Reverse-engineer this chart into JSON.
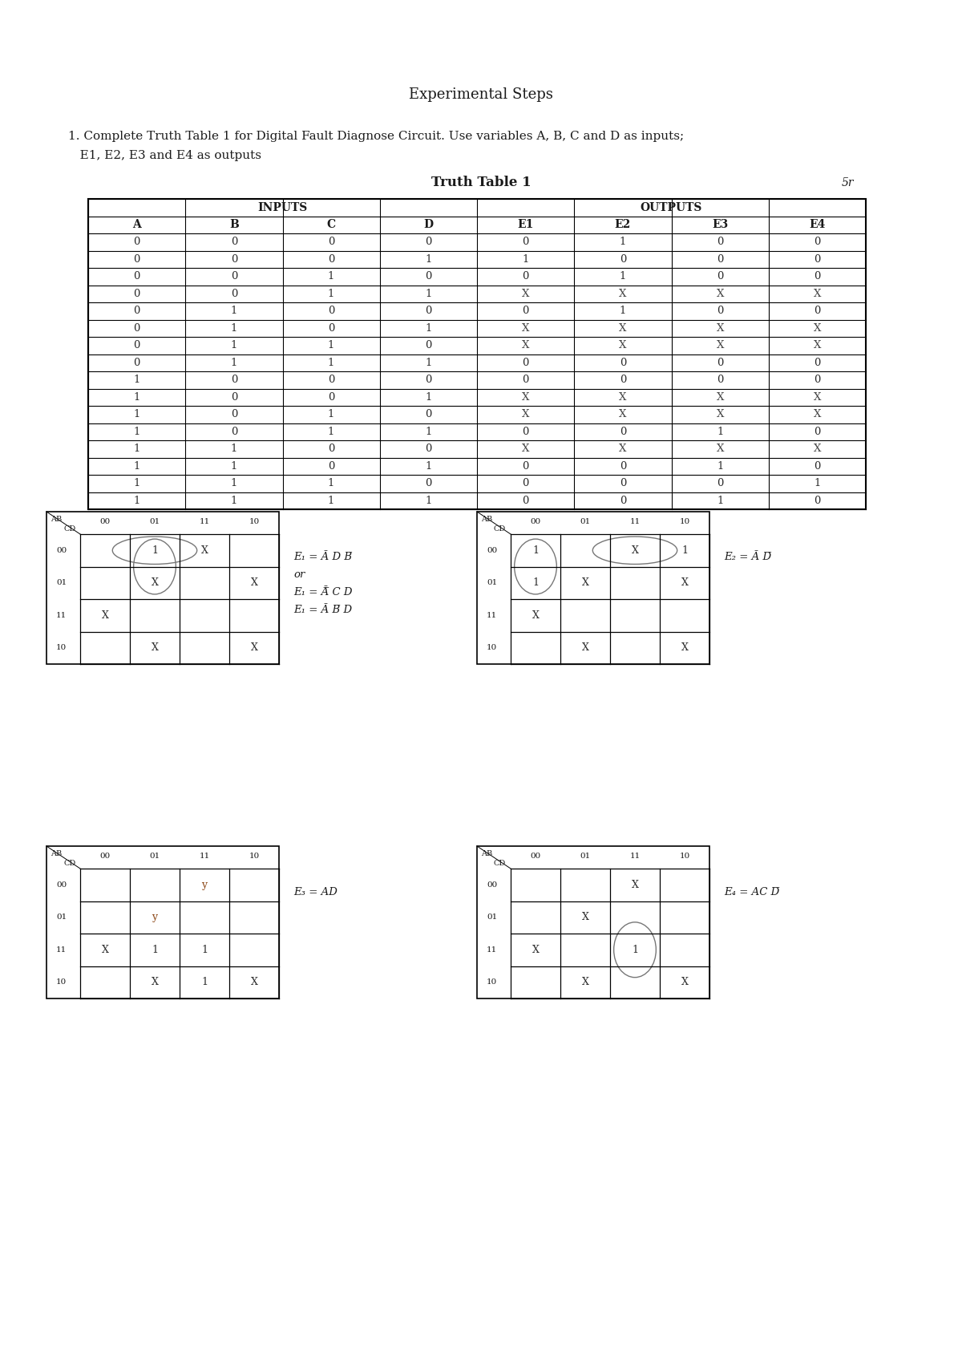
{
  "title": "Experimental Steps",
  "instruction_line1": "1. Complete Truth Table 1 for Digital Fault Diagnose Circuit. Use variables A, B, C and D as inputs;",
  "instruction_line2": "   E1, E2, E3 and E4 as outputs",
  "table_title": "Truth Table 1",
  "table_headers": [
    "A",
    "B",
    "C",
    "D",
    "E1",
    "E2",
    "E3",
    "E4"
  ],
  "table_data": [
    [
      "0",
      "0",
      "0",
      "0",
      "0",
      "1",
      "0",
      "0"
    ],
    [
      "0",
      "0",
      "0",
      "1",
      "1",
      "0",
      "0",
      "0"
    ],
    [
      "0",
      "0",
      "1",
      "0",
      "0",
      "1",
      "0",
      "0"
    ],
    [
      "0",
      "0",
      "1",
      "1",
      "X",
      "X",
      "X",
      "X"
    ],
    [
      "0",
      "1",
      "0",
      "0",
      "0",
      "1",
      "0",
      "0"
    ],
    [
      "0",
      "1",
      "0",
      "1",
      "X",
      "X",
      "X",
      "X"
    ],
    [
      "0",
      "1",
      "1",
      "0",
      "X",
      "X",
      "X",
      "X"
    ],
    [
      "0",
      "1",
      "1",
      "1",
      "0",
      "0",
      "0",
      "0"
    ],
    [
      "1",
      "0",
      "0",
      "0",
      "0",
      "0",
      "0",
      "0"
    ],
    [
      "1",
      "0",
      "0",
      "1",
      "X",
      "X",
      "X",
      "X"
    ],
    [
      "1",
      "0",
      "1",
      "0",
      "X",
      "X",
      "X",
      "X"
    ],
    [
      "1",
      "0",
      "1",
      "1",
      "0",
      "0",
      "1",
      "0"
    ],
    [
      "1",
      "1",
      "0",
      "0",
      "X",
      "X",
      "X",
      "X"
    ],
    [
      "1",
      "1",
      "0",
      "1",
      "0",
      "0",
      "1",
      "0"
    ],
    [
      "1",
      "1",
      "1",
      "0",
      "0",
      "0",
      "0",
      "1"
    ],
    [
      "1",
      "1",
      "1",
      "1",
      "0",
      "0",
      "1",
      "0"
    ]
  ],
  "background_color": "#ffffff",
  "text_color": "#1a1a1a",
  "kmap1_cells": [
    [
      "",
      "1",
      "X",
      ""
    ],
    [
      "",
      "X",
      "",
      "X"
    ],
    [
      "X",
      "",
      "",
      ""
    ],
    [
      "",
      "X",
      "",
      "X"
    ]
  ],
  "kmap1_equation_lines": [
    "E₁ = Ā D B̅",
    "or",
    "E₁ = Ā̅ C D",
    "E₁ = Ā B̅ D"
  ],
  "kmap2_cells": [
    [
      "1",
      "",
      "X",
      "1"
    ],
    [
      "1",
      "X",
      "",
      "X"
    ],
    [
      "X",
      "",
      "",
      ""
    ],
    [
      "",
      "X",
      "",
      "X"
    ]
  ],
  "kmap2_equation_lines": [
    "E₂ = Ā D̅"
  ],
  "kmap3_cells": [
    [
      "",
      "",
      "y",
      ""
    ],
    [
      "",
      "y",
      "",
      ""
    ],
    [
      "X",
      "1",
      "1",
      ""
    ],
    [
      "",
      "X",
      "1",
      "X"
    ]
  ],
  "kmap3_equation_lines": [
    "E₃ = AD"
  ],
  "kmap4_cells": [
    [
      "",
      "",
      "X",
      ""
    ],
    [
      "",
      "X",
      "",
      ""
    ],
    [
      "X",
      "",
      "1",
      ""
    ],
    [
      "",
      "X",
      "",
      "X"
    ]
  ],
  "kmap4_equation_lines": [
    "E₄ = AC D̅"
  ],
  "note": "5r"
}
